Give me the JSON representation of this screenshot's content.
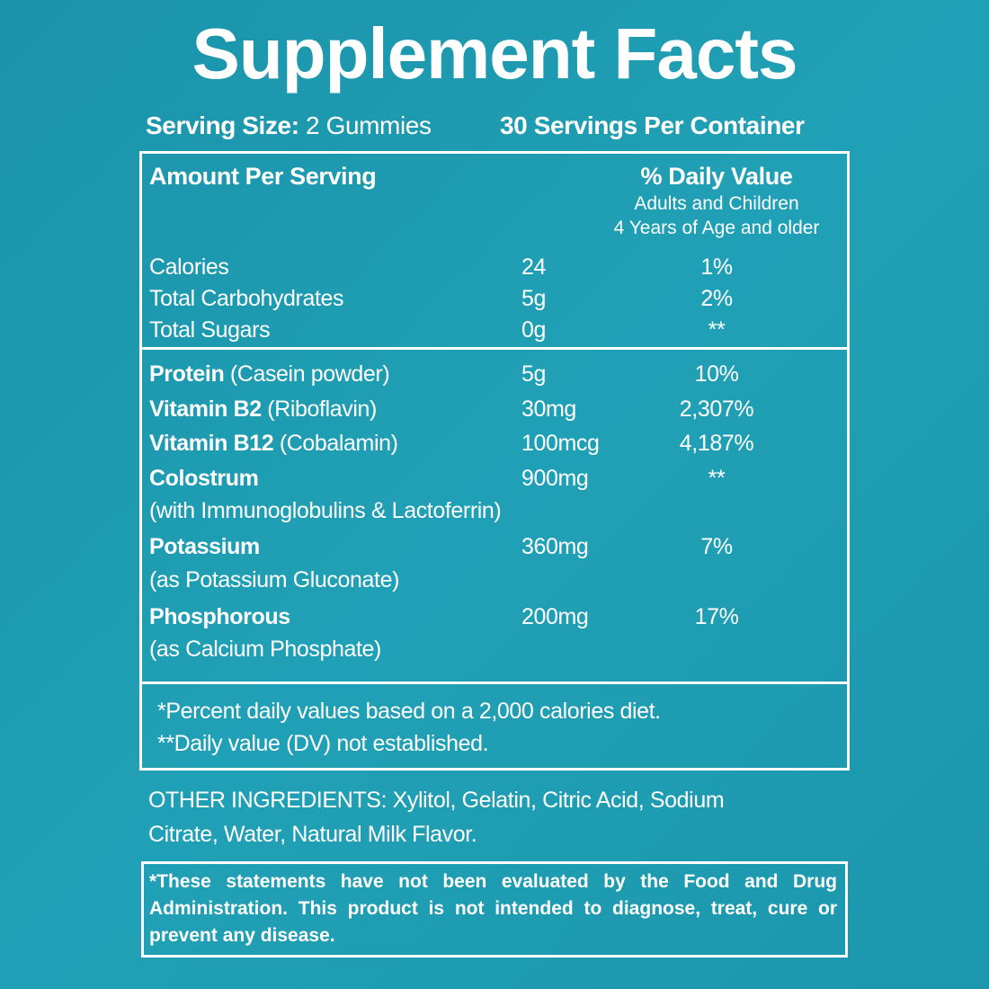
{
  "title": "Supplement Facts",
  "serving": {
    "size_label": "Serving Size:",
    "size": "2 Gummies",
    "servings": "30 Servings Per Container"
  },
  "table": {
    "amount_header": "Amount Per Serving",
    "dv_header": "% Daily Value",
    "dv_note": [
      "Adults and Children",
      "4 Years of Age and older"
    ],
    "basic_rows": [
      {
        "name": "Calories",
        "amount": "24",
        "dv": "1%"
      },
      {
        "name": "Total Carbohydrates",
        "amount": "5g",
        "dv": "2%"
      },
      {
        "name": "Total Sugars",
        "amount": "0g",
        "dv": "**"
      }
    ],
    "rows": [
      {
        "name": "Protein",
        "detail": "(Casein powder)",
        "amount": "5g",
        "dv": "10%"
      },
      {
        "name": "Vitamin B2",
        "detail": "(Riboflavin)",
        "amount": "30mg",
        "dv": "2,307%"
      },
      {
        "name": "Vitamin B12",
        "detail": "(Cobalamin)",
        "amount": "100mcg",
        "dv": "4,187%"
      },
      {
        "name": "Colostrum",
        "detail": "(with Immunoglobulins & Lactoferrin)",
        "amount": "900mg",
        "dv": "**"
      },
      {
        "name": "Potassium",
        "detail": "(as Potassium Gluconate)",
        "amount": "360mg",
        "dv": "7%"
      },
      {
        "name": "Phosphorous",
        "detail": "(as Calcium Phosphate)",
        "amount": "200mg",
        "dv": "17%"
      }
    ],
    "footnotes": [
      "*Percent daily values based on a 2,000 calories diet.",
      "**Daily value (DV) not established."
    ]
  },
  "other_ingredients": "OTHER INGREDIENTS: Xylitol, Gelatin, Citric Acid, Sodium Citrate, Water, Natural Milk Flavor.",
  "disclaimer": "*These statements have not been evaluated by the Food and Drug Administration. This product is not intended to diagnose, treat, cure or prevent any disease."
}
